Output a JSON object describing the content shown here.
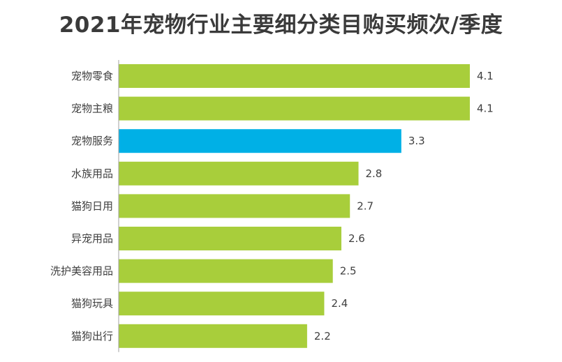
{
  "chart_data": {
    "type": "bar",
    "orientation": "horizontal",
    "title": "2021年宠物行业主要细分类目购买频次/季度",
    "categories": [
      "宠物零食",
      "宠物主粮",
      "宠物服务",
      "水族用品",
      "猫狗日用",
      "异宠用品",
      "洗护美容用品",
      "猫狗玩具",
      "猫狗出行"
    ],
    "values": [
      4.1,
      4.1,
      3.3,
      2.8,
      2.7,
      2.6,
      2.5,
      2.4,
      2.2
    ],
    "data_labels": [
      "4.1",
      "4.1",
      "3.3",
      "2.8",
      "2.7",
      "2.6",
      "2.5",
      "2.4",
      "2.2"
    ],
    "highlight_category": "宠物服务",
    "colors": {
      "default": "#A8CE3B",
      "highlight": "#00B0E6"
    },
    "xlim": [
      0,
      4.1
    ],
    "grid": false,
    "legend": "none"
  }
}
